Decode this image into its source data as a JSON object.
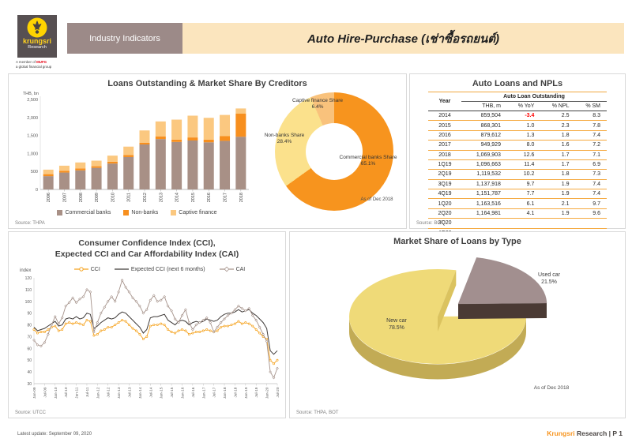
{
  "header": {
    "brand": {
      "name": "krungsri",
      "sub": "Research",
      "tagline1": "A member of",
      "tagline_mufg": "MUFG",
      "tagline2": "a global financial group"
    },
    "section_label": "Industry Indicators",
    "title": "Auto Hire-Purchase (เช่าซื้อรถยนต์)"
  },
  "panels": {
    "loans": {
      "title": "Loans Outstanding & Market Share By Creditors",
      "y_label": "THB, bn",
      "source": "Source: THPA",
      "as_of": "As of Dec 2018"
    },
    "npl_table": {
      "title": "Auto Loans and NPLs",
      "source": "Source: BOT",
      "year_col": "Year",
      "group_col": "Auto Loan Outstanding",
      "sub_cols": [
        "THB, m",
        "% YoY",
        "% NPL",
        "% SM"
      ],
      "rows": [
        [
          "2014",
          "859,504",
          "-3.4",
          "2.5",
          "8.3"
        ],
        [
          "2015",
          "868,301",
          "1.0",
          "2.3",
          "7.8"
        ],
        [
          "2016",
          "879,612",
          "1.3",
          "1.8",
          "7.4"
        ],
        [
          "2017",
          "949,929",
          "8.0",
          "1.6",
          "7.2"
        ],
        [
          "2018",
          "1,069,903",
          "12.6",
          "1.7",
          "7.1"
        ],
        [
          "1Q19",
          "1,096,663",
          "11.4",
          "1.7",
          "6.9"
        ],
        [
          "2Q19",
          "1,119,532",
          "10.2",
          "1.8",
          "7.3"
        ],
        [
          "3Q19",
          "1,137,918",
          "9.7",
          "1.9",
          "7.4"
        ],
        [
          "4Q19",
          "1,151,787",
          "7.7",
          "1.9",
          "7.4"
        ],
        [
          "1Q20",
          "1,163,516",
          "6.1",
          "2.1",
          "9.7"
        ],
        [
          "2Q20",
          "1,164,981",
          "4.1",
          "1.9",
          "9.6"
        ],
        [
          "3Q20",
          "",
          "",
          "",
          ""
        ],
        [
          "4Q20",
          "",
          "",
          "",
          ""
        ]
      ]
    },
    "cci": {
      "title_line1": "Consumer Confidence Index (CCI),",
      "title_line2": "Expected CCI and Car Affordability Index (CAI)",
      "y_label": "index",
      "source": "Source: UTCC"
    },
    "pie": {
      "title": "Market Share of Loans by Type",
      "as_of": "As of Dec 2018",
      "source": "Source: THPA, BOT"
    }
  },
  "footer": {
    "left": "Latest update: September 09, 2020",
    "brand": "Krungsri",
    "brand2": "Research",
    "page": "|  P 1"
  },
  "chart_data": [
    {
      "type": "bar",
      "title": "Loans Outstanding & Market Share By Creditors",
      "ylabel": "THB, bn",
      "ylim": [
        0,
        2500
      ],
      "yticks": [
        0,
        500,
        1000,
        1500,
        2000,
        2500
      ],
      "categories": [
        "2006",
        "2007",
        "2008",
        "2009",
        "2010",
        "2011",
        "2012",
        "2013",
        "2014",
        "2015",
        "2016",
        "2017",
        "2018"
      ],
      "series": [
        {
          "name": "Commercial banks",
          "color": "#A89086",
          "values": [
            370,
            470,
            530,
            600,
            720,
            900,
            1250,
            1400,
            1320,
            1360,
            1310,
            1350,
            1465
          ]
        },
        {
          "name": "Non-banks",
          "color": "#F78F1E",
          "values": [
            55,
            50,
            55,
            45,
            50,
            55,
            50,
            75,
            65,
            85,
            75,
            130,
            640
          ]
        },
        {
          "name": "Captive finance",
          "color": "#FBC880",
          "values": [
            125,
            140,
            165,
            155,
            170,
            235,
            340,
            415,
            555,
            605,
            605,
            590,
            145
          ]
        }
      ]
    },
    {
      "type": "pie",
      "subtype": "donut",
      "as_of": "As of Dec 2018",
      "slices": [
        {
          "label": "Commercial banks Share",
          "pct": "65.1%",
          "value": 65.1,
          "color": "#F7941E"
        },
        {
          "label": "Non-banks Share",
          "pct": "28.4%",
          "value": 28.4,
          "color": "#FBE18C"
        },
        {
          "label": "Captive finance Share",
          "pct": "6.4%",
          "value": 6.4,
          "color": "#F9C27C"
        }
      ]
    },
    {
      "type": "line",
      "title": "Consumer Confidence Index (CCI), Expected CCI and Car Affordability Index (CAI)",
      "ylabel": "index",
      "ylim": [
        30,
        120
      ],
      "yticks": [
        30,
        40,
        50,
        60,
        70,
        80,
        90,
        100,
        110,
        120
      ],
      "x_start": "Jan-09",
      "x_end": "Jul-20",
      "months_total": 138,
      "anchor_step_months": 2,
      "x_ticks": [
        "Jan-09",
        "Jul-09",
        "Jan-10",
        "Jul-10",
        "Jan-11",
        "Jul-11",
        "Jan-12",
        "Jul-12",
        "Jan-13",
        "Jul-13",
        "Jan-14",
        "Jul-14",
        "Jan-15",
        "Jul-15",
        "Jan-16",
        "Jul-16",
        "Jan-17",
        "Jul-17",
        "Jan-18",
        "Jul-18",
        "Jan-19",
        "Jul-19",
        "Jan-20",
        "Jul-20"
      ],
      "series": [
        {
          "name": "CCI",
          "color": "#F5A21D",
          "marker": "circle",
          "values": [
            76,
            73,
            74,
            74,
            76,
            78,
            79,
            75,
            76,
            81,
            82,
            81,
            82,
            81,
            80,
            84,
            83,
            71,
            72,
            75,
            76,
            78,
            78,
            80,
            82,
            84,
            83,
            80,
            77,
            75,
            72,
            68,
            70,
            79,
            80,
            80,
            81,
            80,
            76,
            74,
            73,
            75,
            76,
            75,
            72,
            73,
            74,
            74,
            75,
            76,
            75,
            74,
            75,
            78,
            79,
            79,
            80,
            81,
            83,
            81,
            82,
            81,
            79,
            76,
            73,
            70,
            68,
            50,
            47,
            50
          ]
        },
        {
          "name": "Expected CCI (next 6 months)",
          "color": "#3F3A38",
          "marker": "line",
          "values": [
            78,
            75,
            76,
            77,
            79,
            81,
            83,
            79,
            80,
            85,
            86,
            85,
            87,
            85,
            86,
            90,
            89,
            77,
            79,
            82,
            84,
            86,
            85,
            86,
            89,
            91,
            90,
            87,
            84,
            81,
            78,
            73,
            76,
            86,
            87,
            87,
            88,
            89,
            84,
            82,
            80,
            83,
            84,
            83,
            80,
            82,
            83,
            82,
            83,
            85,
            84,
            83,
            84,
            87,
            89,
            90,
            90,
            91,
            93,
            91,
            92,
            93,
            90,
            88,
            85,
            82,
            77,
            58,
            55,
            58
          ]
        },
        {
          "name": "CAI",
          "color": "#A6938B",
          "marker": "diamond",
          "values": [
            67,
            63,
            62,
            65,
            72,
            80,
            87,
            81,
            86,
            96,
            99,
            103,
            99,
            102,
            104,
            110,
            108,
            74,
            82,
            90,
            95,
            100,
            104,
            100,
            108,
            118,
            112,
            108,
            103,
            100,
            96,
            90,
            93,
            101,
            105,
            100,
            101,
            104,
            96,
            92,
            85,
            82,
            88,
            93,
            82,
            76,
            80,
            82,
            84,
            86,
            82,
            74,
            78,
            82,
            85,
            88,
            90,
            93,
            96,
            94,
            92,
            94,
            88,
            84,
            78,
            72,
            66,
            40,
            35,
            43
          ]
        }
      ]
    },
    {
      "type": "pie",
      "subtype": "3d-exploded",
      "as_of": "As of Dec 2018",
      "slices": [
        {
          "label": "New car",
          "pct": "78.5%",
          "value": 78.5,
          "color": "#EFDA78",
          "wall": "#C2AB55"
        },
        {
          "label": "Used car",
          "pct": "21.5%",
          "value": 21.5,
          "color": "#A28F8F",
          "wall": "#4A3A34"
        }
      ],
      "notch_face_color": "#DBC35F"
    }
  ]
}
